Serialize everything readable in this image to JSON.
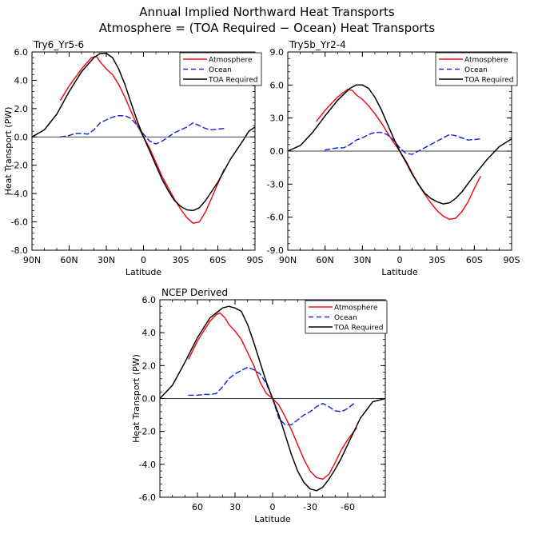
{
  "figure": {
    "title_line1": "Annual Implied Northward Heat Transports",
    "title_line2": "Atmosphere = (TOA Required − Ocean) Heat Transports"
  },
  "colors": {
    "atmosphere": "#e8141c",
    "ocean": "#1c2fd6",
    "toa": "#000000"
  },
  "chart_data": [
    {
      "type": "line",
      "title": "Try6_Yr5-6",
      "xlabel": "Latitude",
      "ylabel": "Heat Transport (PW)",
      "xlim": [
        90,
        -90
      ],
      "ylim": [
        -8,
        6
      ],
      "xticks": [
        90,
        60,
        30,
        0,
        -30,
        -60,
        -90
      ],
      "xticklabels": [
        "90N",
        "60N",
        "30N",
        "0",
        "30S",
        "60S",
        "90S"
      ],
      "yticks": [
        6,
        4,
        2,
        0,
        -2,
        -4,
        -6,
        -8
      ],
      "yticklabels": [
        "6.0",
        "4.0",
        "2.0",
        "0.0",
        "-2.0",
        "-4.0",
        "-6.0",
        "-8.0"
      ],
      "legend": "top-right",
      "series": [
        {
          "name": "Atmosphere",
          "color": "red",
          "dash": "solid",
          "points": [
            [
              67,
              2.6
            ],
            [
              60,
              3.6
            ],
            [
              50,
              4.8
            ],
            [
              42,
              5.6
            ],
            [
              38,
              5.7
            ],
            [
              35,
              5.3
            ],
            [
              30,
              4.8
            ],
            [
              25,
              4.4
            ],
            [
              20,
              3.7
            ],
            [
              15,
              2.8
            ],
            [
              10,
              1.8
            ],
            [
              5,
              0.8
            ],
            [
              0,
              0
            ],
            [
              -5,
              -0.8
            ],
            [
              -10,
              -1.8
            ],
            [
              -15,
              -2.8
            ],
            [
              -20,
              -3.6
            ],
            [
              -25,
              -4.4
            ],
            [
              -30,
              -5.1
            ],
            [
              -35,
              -5.7
            ],
            [
              -40,
              -6.1
            ],
            [
              -45,
              -6.0
            ],
            [
              -50,
              -5.3
            ],
            [
              -55,
              -4.3
            ],
            [
              -60,
              -3.3
            ],
            [
              -65,
              -2.3
            ]
          ]
        },
        {
          "name": "Ocean",
          "color": "blue",
          "dash": "dashed",
          "points": [
            [
              67,
              0.0
            ],
            [
              60,
              0.1
            ],
            [
              55,
              0.25
            ],
            [
              50,
              0.25
            ],
            [
              45,
              0.2
            ],
            [
              40,
              0.5
            ],
            [
              35,
              1.0
            ],
            [
              30,
              1.2
            ],
            [
              25,
              1.4
            ],
            [
              20,
              1.5
            ],
            [
              15,
              1.5
            ],
            [
              10,
              1.3
            ],
            [
              5,
              0.8
            ],
            [
              0,
              0.2
            ],
            [
              -5,
              -0.3
            ],
            [
              -10,
              -0.5
            ],
            [
              -15,
              -0.3
            ],
            [
              -20,
              0.0
            ],
            [
              -25,
              0.3
            ],
            [
              -30,
              0.5
            ],
            [
              -35,
              0.7
            ],
            [
              -40,
              1.0
            ],
            [
              -45,
              0.8
            ],
            [
              -50,
              0.6
            ],
            [
              -55,
              0.5
            ],
            [
              -60,
              0.55
            ],
            [
              -65,
              0.6
            ]
          ]
        },
        {
          "name": "TOA Required",
          "color": "black",
          "dash": "solid",
          "points": [
            [
              90,
              0
            ],
            [
              80,
              0.5
            ],
            [
              70,
              1.6
            ],
            [
              60,
              3.2
            ],
            [
              50,
              4.6
            ],
            [
              40,
              5.6
            ],
            [
              35,
              5.9
            ],
            [
              30,
              5.9
            ],
            [
              25,
              5.6
            ],
            [
              20,
              4.8
            ],
            [
              15,
              3.7
            ],
            [
              10,
              2.4
            ],
            [
              5,
              1.1
            ],
            [
              0,
              0
            ],
            [
              -5,
              -1.0
            ],
            [
              -10,
              -2.0
            ],
            [
              -15,
              -3.0
            ],
            [
              -20,
              -3.8
            ],
            [
              -25,
              -4.5
            ],
            [
              -30,
              -4.9
            ],
            [
              -35,
              -5.15
            ],
            [
              -40,
              -5.2
            ],
            [
              -45,
              -5.0
            ],
            [
              -50,
              -4.5
            ],
            [
              -60,
              -3.2
            ],
            [
              -70,
              -1.6
            ],
            [
              -80,
              -0.3
            ],
            [
              -85,
              0.4
            ],
            [
              -90,
              0.7
            ]
          ]
        }
      ]
    },
    {
      "type": "line",
      "title": "Try5b_Yr2-4",
      "xlabel": "Latitude",
      "ylabel": "",
      "xlim": [
        90,
        -90
      ],
      "ylim": [
        -9,
        9
      ],
      "xticks": [
        90,
        60,
        30,
        0,
        -30,
        -60,
        -90
      ],
      "xticklabels": [
        "90N",
        "60N",
        "30N",
        "0",
        "30S",
        "60S",
        "90S"
      ],
      "yticks": [
        9,
        6,
        3,
        0,
        -3,
        -6,
        -9
      ],
      "yticklabels": [
        "9.0",
        "6.0",
        "3.0",
        "0.0",
        "-3.0",
        "-6.0",
        "-9.0"
      ],
      "legend": "top-right",
      "series": [
        {
          "name": "Atmosphere",
          "color": "red",
          "dash": "solid",
          "points": [
            [
              67,
              2.7
            ],
            [
              60,
              3.7
            ],
            [
              50,
              4.9
            ],
            [
              42,
              5.6
            ],
            [
              38,
              5.5
            ],
            [
              35,
              5.1
            ],
            [
              30,
              4.7
            ],
            [
              25,
              4.1
            ],
            [
              20,
              3.4
            ],
            [
              15,
              2.6
            ],
            [
              10,
              1.7
            ],
            [
              5,
              0.8
            ],
            [
              0,
              0
            ],
            [
              -5,
              -0.9
            ],
            [
              -10,
              -2.0
            ],
            [
              -15,
              -3.0
            ],
            [
              -20,
              -3.9
            ],
            [
              -25,
              -4.7
            ],
            [
              -30,
              -5.4
            ],
            [
              -35,
              -5.9
            ],
            [
              -40,
              -6.2
            ],
            [
              -45,
              -6.1
            ],
            [
              -50,
              -5.5
            ],
            [
              -55,
              -4.6
            ],
            [
              -60,
              -3.4
            ],
            [
              -65,
              -2.3
            ]
          ]
        },
        {
          "name": "Ocean",
          "color": "blue",
          "dash": "dashed",
          "points": [
            [
              60,
              0.1
            ],
            [
              55,
              0.2
            ],
            [
              50,
              0.3
            ],
            [
              45,
              0.3
            ],
            [
              40,
              0.6
            ],
            [
              35,
              1.0
            ],
            [
              30,
              1.2
            ],
            [
              25,
              1.5
            ],
            [
              20,
              1.7
            ],
            [
              15,
              1.7
            ],
            [
              10,
              1.5
            ],
            [
              5,
              1.0
            ],
            [
              0,
              0.3
            ],
            [
              -5,
              -0.2
            ],
            [
              -10,
              -0.3
            ],
            [
              -15,
              0.0
            ],
            [
              -20,
              0.3
            ],
            [
              -25,
              0.6
            ],
            [
              -30,
              0.9
            ],
            [
              -35,
              1.2
            ],
            [
              -40,
              1.5
            ],
            [
              -45,
              1.4
            ],
            [
              -50,
              1.2
            ],
            [
              -55,
              1.0
            ],
            [
              -60,
              1.05
            ],
            [
              -65,
              1.1
            ]
          ]
        },
        {
          "name": "TOA Required",
          "color": "black",
          "dash": "solid",
          "points": [
            [
              90,
              0
            ],
            [
              80,
              0.5
            ],
            [
              70,
              1.7
            ],
            [
              60,
              3.2
            ],
            [
              50,
              4.6
            ],
            [
              40,
              5.7
            ],
            [
              35,
              6.0
            ],
            [
              30,
              6.0
            ],
            [
              25,
              5.7
            ],
            [
              20,
              4.9
            ],
            [
              15,
              3.8
            ],
            [
              10,
              2.5
            ],
            [
              5,
              1.2
            ],
            [
              0,
              0
            ],
            [
              -5,
              -1.0
            ],
            [
              -10,
              -2.1
            ],
            [
              -15,
              -3.0
            ],
            [
              -20,
              -3.8
            ],
            [
              -25,
              -4.3
            ],
            [
              -30,
              -4.6
            ],
            [
              -35,
              -4.8
            ],
            [
              -40,
              -4.7
            ],
            [
              -45,
              -4.3
            ],
            [
              -50,
              -3.7
            ],
            [
              -60,
              -2.2
            ],
            [
              -70,
              -0.8
            ],
            [
              -80,
              0.4
            ],
            [
              -90,
              1.1
            ]
          ]
        }
      ]
    },
    {
      "type": "line",
      "title": "NCEP Derived",
      "xlabel": "Latitude",
      "ylabel": "Heat Transport (PW)",
      "xlim": [
        90,
        -90
      ],
      "ylim": [
        -6,
        6
      ],
      "xticks": [
        60,
        30,
        0,
        -30,
        -60
      ],
      "xticklabels": [
        "60",
        "30",
        "0",
        "-30",
        "-60"
      ],
      "yticks": [
        6,
        4,
        2,
        0,
        -2,
        -4,
        -6
      ],
      "yticklabels": [
        "6.0",
        "4.0",
        "2.0",
        "0.0",
        "-2.0",
        "-4.0",
        "-6.0"
      ],
      "legend": "top-right",
      "series": [
        {
          "name": "Atmosphere",
          "color": "red",
          "dash": "solid",
          "points": [
            [
              67,
              2.4
            ],
            [
              60,
              3.5
            ],
            [
              50,
              4.7
            ],
            [
              45,
              5.1
            ],
            [
              42,
              5.2
            ],
            [
              38,
              4.9
            ],
            [
              35,
              4.5
            ],
            [
              30,
              4.1
            ],
            [
              25,
              3.6
            ],
            [
              20,
              2.8
            ],
            [
              15,
              2.0
            ],
            [
              10,
              1.0
            ],
            [
              5,
              0.3
            ],
            [
              0,
              0
            ],
            [
              -5,
              -0.4
            ],
            [
              -10,
              -1.1
            ],
            [
              -15,
              -1.9
            ],
            [
              -20,
              -2.8
            ],
            [
              -25,
              -3.7
            ],
            [
              -30,
              -4.4
            ],
            [
              -35,
              -4.8
            ],
            [
              -40,
              -4.9
            ],
            [
              -45,
              -4.6
            ],
            [
              -50,
              -3.9
            ],
            [
              -55,
              -3.1
            ],
            [
              -60,
              -2.5
            ],
            [
              -67,
              -1.8
            ]
          ]
        },
        {
          "name": "Ocean",
          "color": "blue",
          "dash": "dashed",
          "points": [
            [
              67,
              0.2
            ],
            [
              60,
              0.2
            ],
            [
              55,
              0.25
            ],
            [
              50,
              0.25
            ],
            [
              45,
              0.3
            ],
            [
              40,
              0.7
            ],
            [
              35,
              1.2
            ],
            [
              30,
              1.5
            ],
            [
              25,
              1.7
            ],
            [
              20,
              1.9
            ],
            [
              15,
              1.75
            ],
            [
              10,
              1.5
            ],
            [
              5,
              0.9
            ],
            [
              0,
              0
            ],
            [
              -5,
              -1.2
            ],
            [
              -10,
              -1.6
            ],
            [
              -15,
              -1.6
            ],
            [
              -20,
              -1.3
            ],
            [
              -25,
              -1.0
            ],
            [
              -30,
              -0.8
            ],
            [
              -35,
              -0.5
            ],
            [
              -40,
              -0.3
            ],
            [
              -45,
              -0.5
            ],
            [
              -50,
              -0.75
            ],
            [
              -55,
              -0.8
            ],
            [
              -60,
              -0.6
            ],
            [
              -65,
              -0.3
            ]
          ]
        },
        {
          "name": "TOA Required",
          "color": "black",
          "dash": "solid",
          "points": [
            [
              90,
              0
            ],
            [
              80,
              0.8
            ],
            [
              70,
              2.2
            ],
            [
              60,
              3.7
            ],
            [
              50,
              4.9
            ],
            [
              40,
              5.5
            ],
            [
              35,
              5.6
            ],
            [
              30,
              5.5
            ],
            [
              25,
              5.3
            ],
            [
              20,
              4.5
            ],
            [
              15,
              3.4
            ],
            [
              10,
              2.2
            ],
            [
              5,
              1.0
            ],
            [
              0,
              0
            ],
            [
              -5,
              -1.0
            ],
            [
              -10,
              -2.2
            ],
            [
              -15,
              -3.4
            ],
            [
              -20,
              -4.4
            ],
            [
              -25,
              -5.1
            ],
            [
              -30,
              -5.5
            ],
            [
              -35,
              -5.6
            ],
            [
              -40,
              -5.4
            ],
            [
              -45,
              -4.9
            ],
            [
              -50,
              -4.3
            ],
            [
              -55,
              -3.6
            ],
            [
              -60,
              -2.8
            ],
            [
              -70,
              -1.2
            ],
            [
              -80,
              -0.2
            ],
            [
              -90,
              0
            ]
          ]
        }
      ]
    }
  ]
}
